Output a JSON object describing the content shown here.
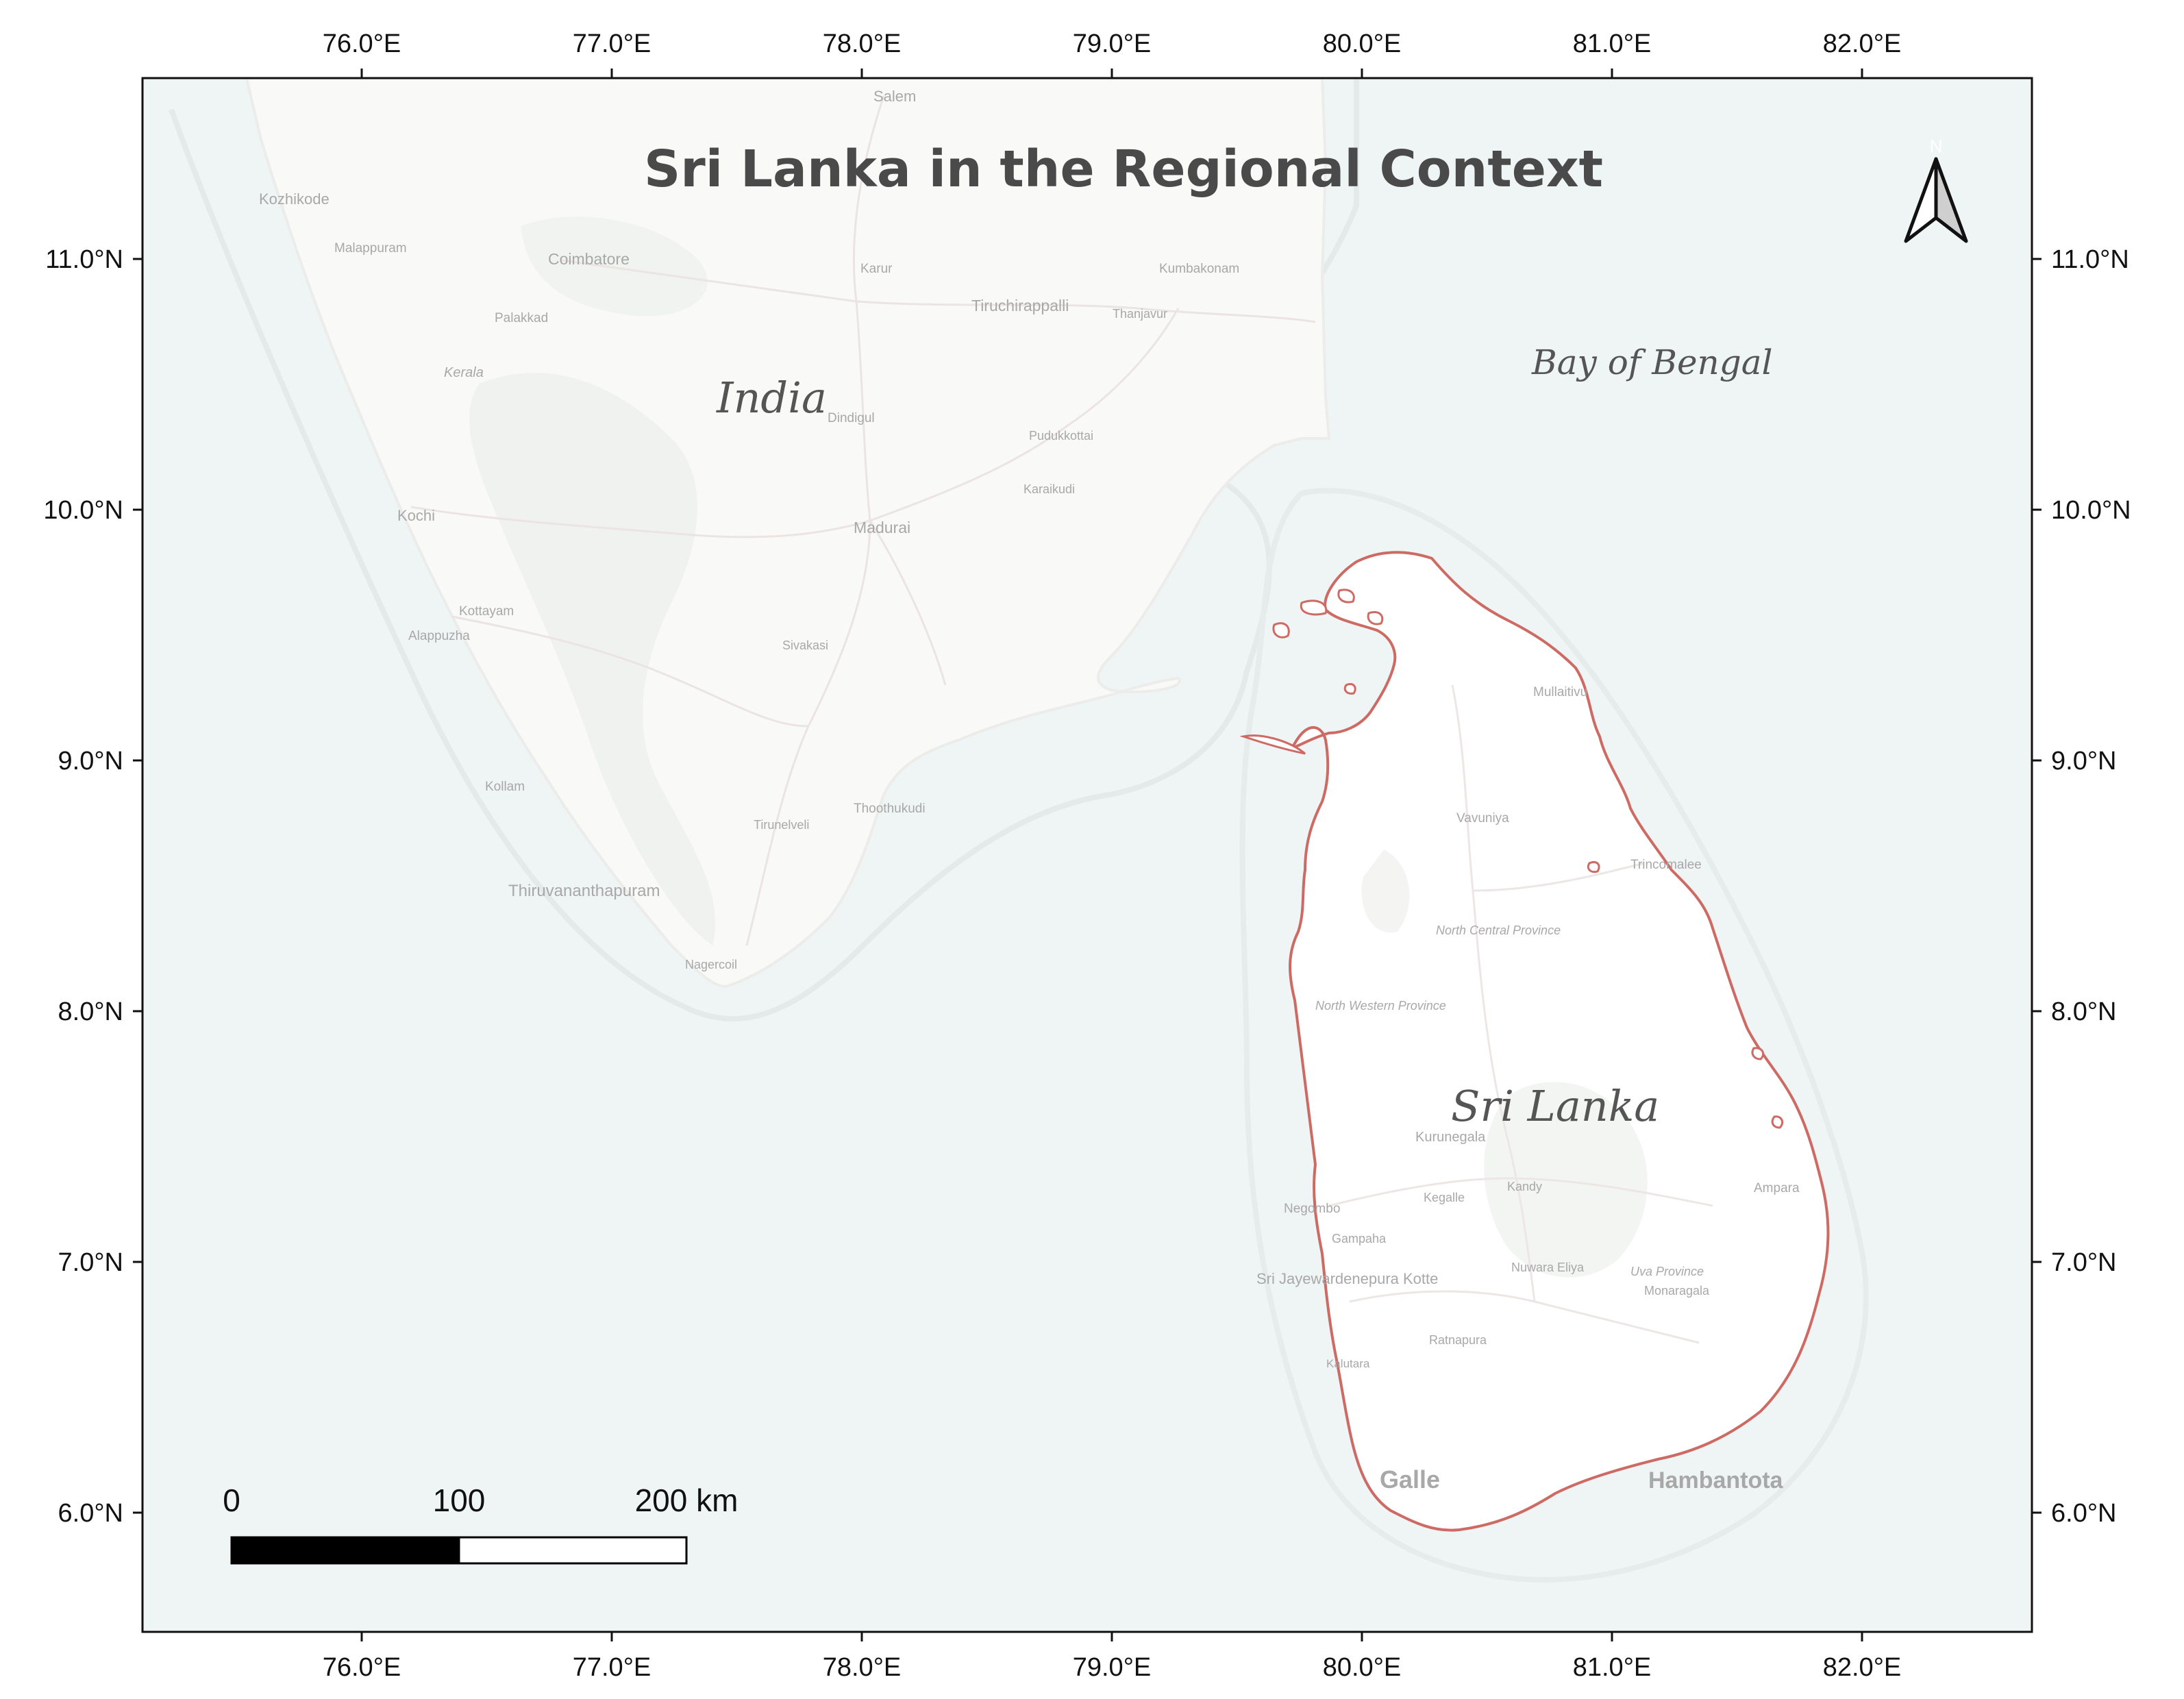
{
  "title": "Sri Lanka in the Regional Context",
  "colors": {
    "sea": "#eff4f4",
    "land": "#f9f9f8",
    "outline": "#cd6a63",
    "frame": "#111111"
  },
  "axes": {
    "lon_ticks": [
      "76.0°E",
      "77.0°E",
      "78.0°E",
      "79.0°E",
      "80.0°E",
      "81.0°E",
      "82.0°E"
    ],
    "lat_ticks": [
      "11.0°N",
      "10.0°N",
      "9.0°N",
      "8.0°N",
      "7.0°N",
      "6.0°N"
    ]
  },
  "labels": {
    "india": "India",
    "sri_lanka": "Sri Lanka",
    "bay_of_bengal": "Bay of Bengal"
  },
  "north_arrow": {
    "icon": "north-arrow-icon",
    "letter": "N"
  },
  "scale_bar": {
    "labels": [
      "0",
      "100",
      "200 km"
    ]
  },
  "basemap_places": [
    "Salem",
    "Kozhikode",
    "Malappuram",
    "Coimbatore",
    "Palakkad",
    "Kerala",
    "Karur",
    "Kumbakonam",
    "Tiruchirappalli",
    "Thanjavur",
    "Dindigul",
    "Pudukkottai",
    "Karaikudi",
    "Kochi",
    "Madurai",
    "Kottayam",
    "Alappuzha",
    "Sivakasi",
    "Kollam",
    "Tirunelveli",
    "Thoothukudi",
    "Thiruvananthapuram",
    "Nagercoil",
    "Mullaitivu",
    "Vavuniya",
    "Trincomalee",
    "North Central Province",
    "North Western Province",
    "Kurunegala",
    "Ampara",
    "Kegalle",
    "Kandy",
    "Negombo",
    "Gampaha",
    "Nuwara Eliya",
    "Uva Province",
    "Monaragala",
    "Sri Jayewardenepura Kotte",
    "Ratnapura",
    "Kalutara",
    "Galle",
    "Hambantota"
  ]
}
